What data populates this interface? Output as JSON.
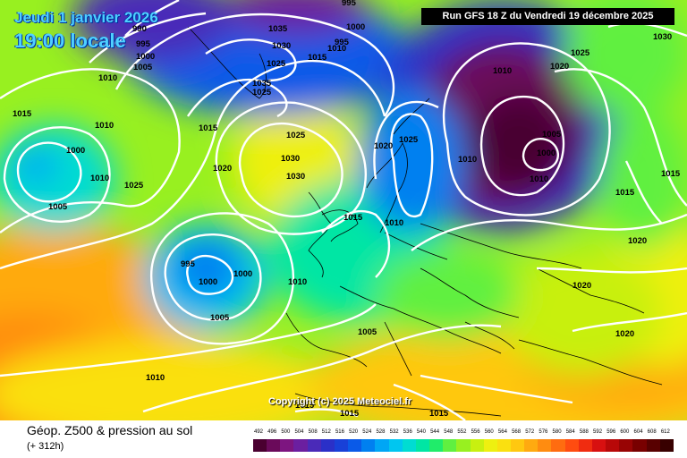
{
  "header": {
    "date": "Jeudi 1 janvier 2026",
    "time": "19:00 locale",
    "run": "Run GFS 18 Z du Vendredi 19 décembre 2025"
  },
  "copyright": "Copyright (c) 2025 Meteociel.fr",
  "legend": {
    "title": "Géop. Z500 & pression au sol",
    "subtitle": "(+ 312h)",
    "scale": [
      "492",
      "496",
      "500",
      "504",
      "508",
      "512",
      "516",
      "520",
      "524",
      "528",
      "532",
      "536",
      "540",
      "544",
      "548",
      "552",
      "556",
      "560",
      "564",
      "568",
      "572",
      "576",
      "580",
      "584",
      "588",
      "592",
      "596",
      "600",
      "604",
      "608",
      "612"
    ],
    "colors": [
      "#4a0030",
      "#6a0a5a",
      "#7d1580",
      "#6b1fa0",
      "#4a2ab8",
      "#2a30c8",
      "#1840d8",
      "#0a5ae8",
      "#0080f0",
      "#00a6f5",
      "#00c6f0",
      "#00dcd2",
      "#00e6a4",
      "#20ec6a",
      "#60f040",
      "#98f020",
      "#c8f010",
      "#eef010",
      "#fae010",
      "#ffc810",
      "#ffaa10",
      "#ff8c10",
      "#ff6c10",
      "#ff4c10",
      "#f02c10",
      "#d81010",
      "#b80808",
      "#980404",
      "#780000",
      "#580000",
      "#380000"
    ]
  },
  "isobars": [
    {
      "v": "995",
      "at": "top"
    },
    {
      "v": "990",
      "at": "nw"
    },
    {
      "v": "995",
      "at": "nw"
    },
    {
      "v": "1000",
      "at": "nw"
    },
    {
      "v": "1005",
      "at": "nw"
    },
    {
      "v": "1010",
      "at": "nw"
    },
    {
      "v": "1035",
      "at": "n"
    },
    {
      "v": "1030",
      "at": "n"
    },
    {
      "v": "1025",
      "at": "n"
    },
    {
      "v": "1015",
      "at": "n"
    },
    {
      "v": "1010",
      "at": "n"
    },
    {
      "v": "1000",
      "at": "n"
    },
    {
      "v": "995",
      "at": "n"
    },
    {
      "v": "1030",
      "at": "ne"
    },
    {
      "v": "1025",
      "at": "ne"
    },
    {
      "v": "1020",
      "at": "ne"
    },
    {
      "v": "1010",
      "at": "ne"
    },
    {
      "v": "1005",
      "at": "ne"
    },
    {
      "v": "1000",
      "at": "ne"
    },
    {
      "v": "1010",
      "at": "ne"
    },
    {
      "v": "1010",
      "at": "ne"
    },
    {
      "v": "1015",
      "at": "w"
    },
    {
      "v": "1010",
      "at": "w"
    },
    {
      "v": "1000",
      "at": "w"
    },
    {
      "v": "1010",
      "at": "w"
    },
    {
      "v": "1005",
      "at": "w"
    },
    {
      "v": "1025",
      "at": "w"
    },
    {
      "v": "1035",
      "at": "c"
    },
    {
      "v": "1025",
      "at": "c"
    },
    {
      "v": "1015",
      "at": "c"
    },
    {
      "v": "1025",
      "at": "c"
    },
    {
      "v": "1030",
      "at": "c"
    },
    {
      "v": "1030",
      "at": "c"
    },
    {
      "v": "1020",
      "at": "c"
    },
    {
      "v": "1020",
      "at": "c"
    },
    {
      "v": "1025",
      "at": "c"
    },
    {
      "v": "1015",
      "at": "c"
    },
    {
      "v": "1010",
      "at": "c"
    },
    {
      "v": "995",
      "at": "sw"
    },
    {
      "v": "1000",
      "at": "sw"
    },
    {
      "v": "1000",
      "at": "sw"
    },
    {
      "v": "1005",
      "at": "sw"
    },
    {
      "v": "1010",
      "at": "sw"
    },
    {
      "v": "1005",
      "at": "s"
    },
    {
      "v": "1010",
      "at": "s"
    },
    {
      "v": "1015",
      "at": "e"
    },
    {
      "v": "1015",
      "at": "e"
    },
    {
      "v": "1020",
      "at": "e"
    },
    {
      "v": "1020",
      "at": "e"
    },
    {
      "v": "1020",
      "at": "e"
    },
    {
      "v": "1015",
      "at": "bottom"
    },
    {
      "v": "1015",
      "at": "bottom"
    },
    {
      "v": "1015",
      "at": "bottom"
    },
    {
      "v": "1030",
      "at": "ne"
    }
  ]
}
